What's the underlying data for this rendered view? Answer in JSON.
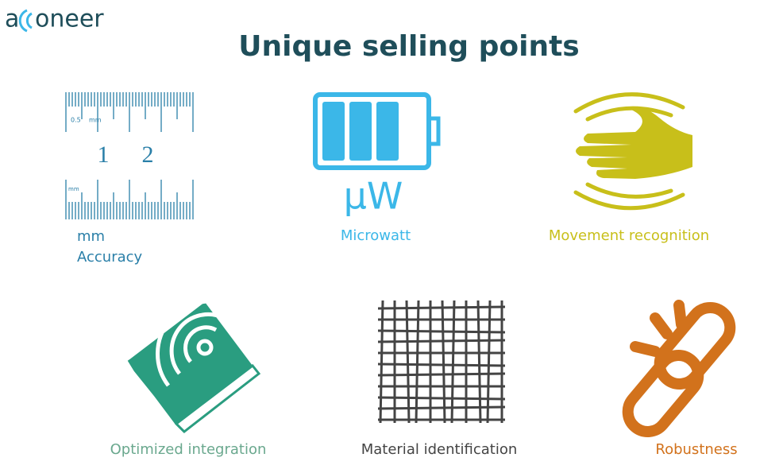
{
  "logo": {
    "prefix": "a",
    "suffix": "oneer"
  },
  "title": "Unique selling points",
  "icons": {
    "ruler_small": "0.5",
    "ruler_unit_top": "mm",
    "ruler_one": "1",
    "ruler_two": "2",
    "ruler_unit_bottom": "mm",
    "battery_unit": "µW"
  },
  "items": [
    {
      "label": [
        "mm",
        "Accuracy"
      ]
    },
    {
      "label": [
        "Microwatt"
      ]
    },
    {
      "label": [
        "Movement recognition"
      ]
    },
    {
      "label": [
        "Optimized integration"
      ]
    },
    {
      "label": [
        "Material identification"
      ]
    },
    {
      "label": [
        "Robustness"
      ]
    }
  ]
}
